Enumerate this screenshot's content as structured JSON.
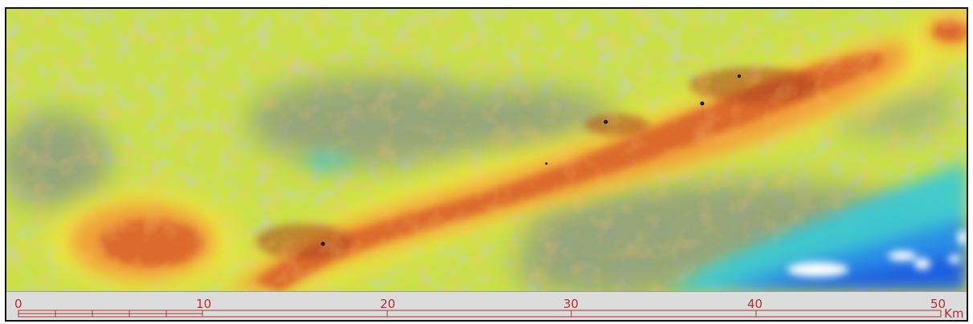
{
  "map": {
    "type": "raster heat map with linear anomaly",
    "colors": {
      "low_white": "#ffffff",
      "low_blue": "#1f5fe0",
      "cyan": "#35c9d8",
      "gray_green": "#8e9c80",
      "green": "#a9cf52",
      "yellow": "#f2e83a",
      "orange": "#f0a13a",
      "red_orange": "#d9652a",
      "dark_red": "#a8401f",
      "point_marker": "#1a1a1a"
    }
  },
  "scale_bar": {
    "labels": [
      "0",
      "10",
      "20",
      "30",
      "40",
      "50"
    ],
    "unit": "Km",
    "color": "#b03030"
  }
}
